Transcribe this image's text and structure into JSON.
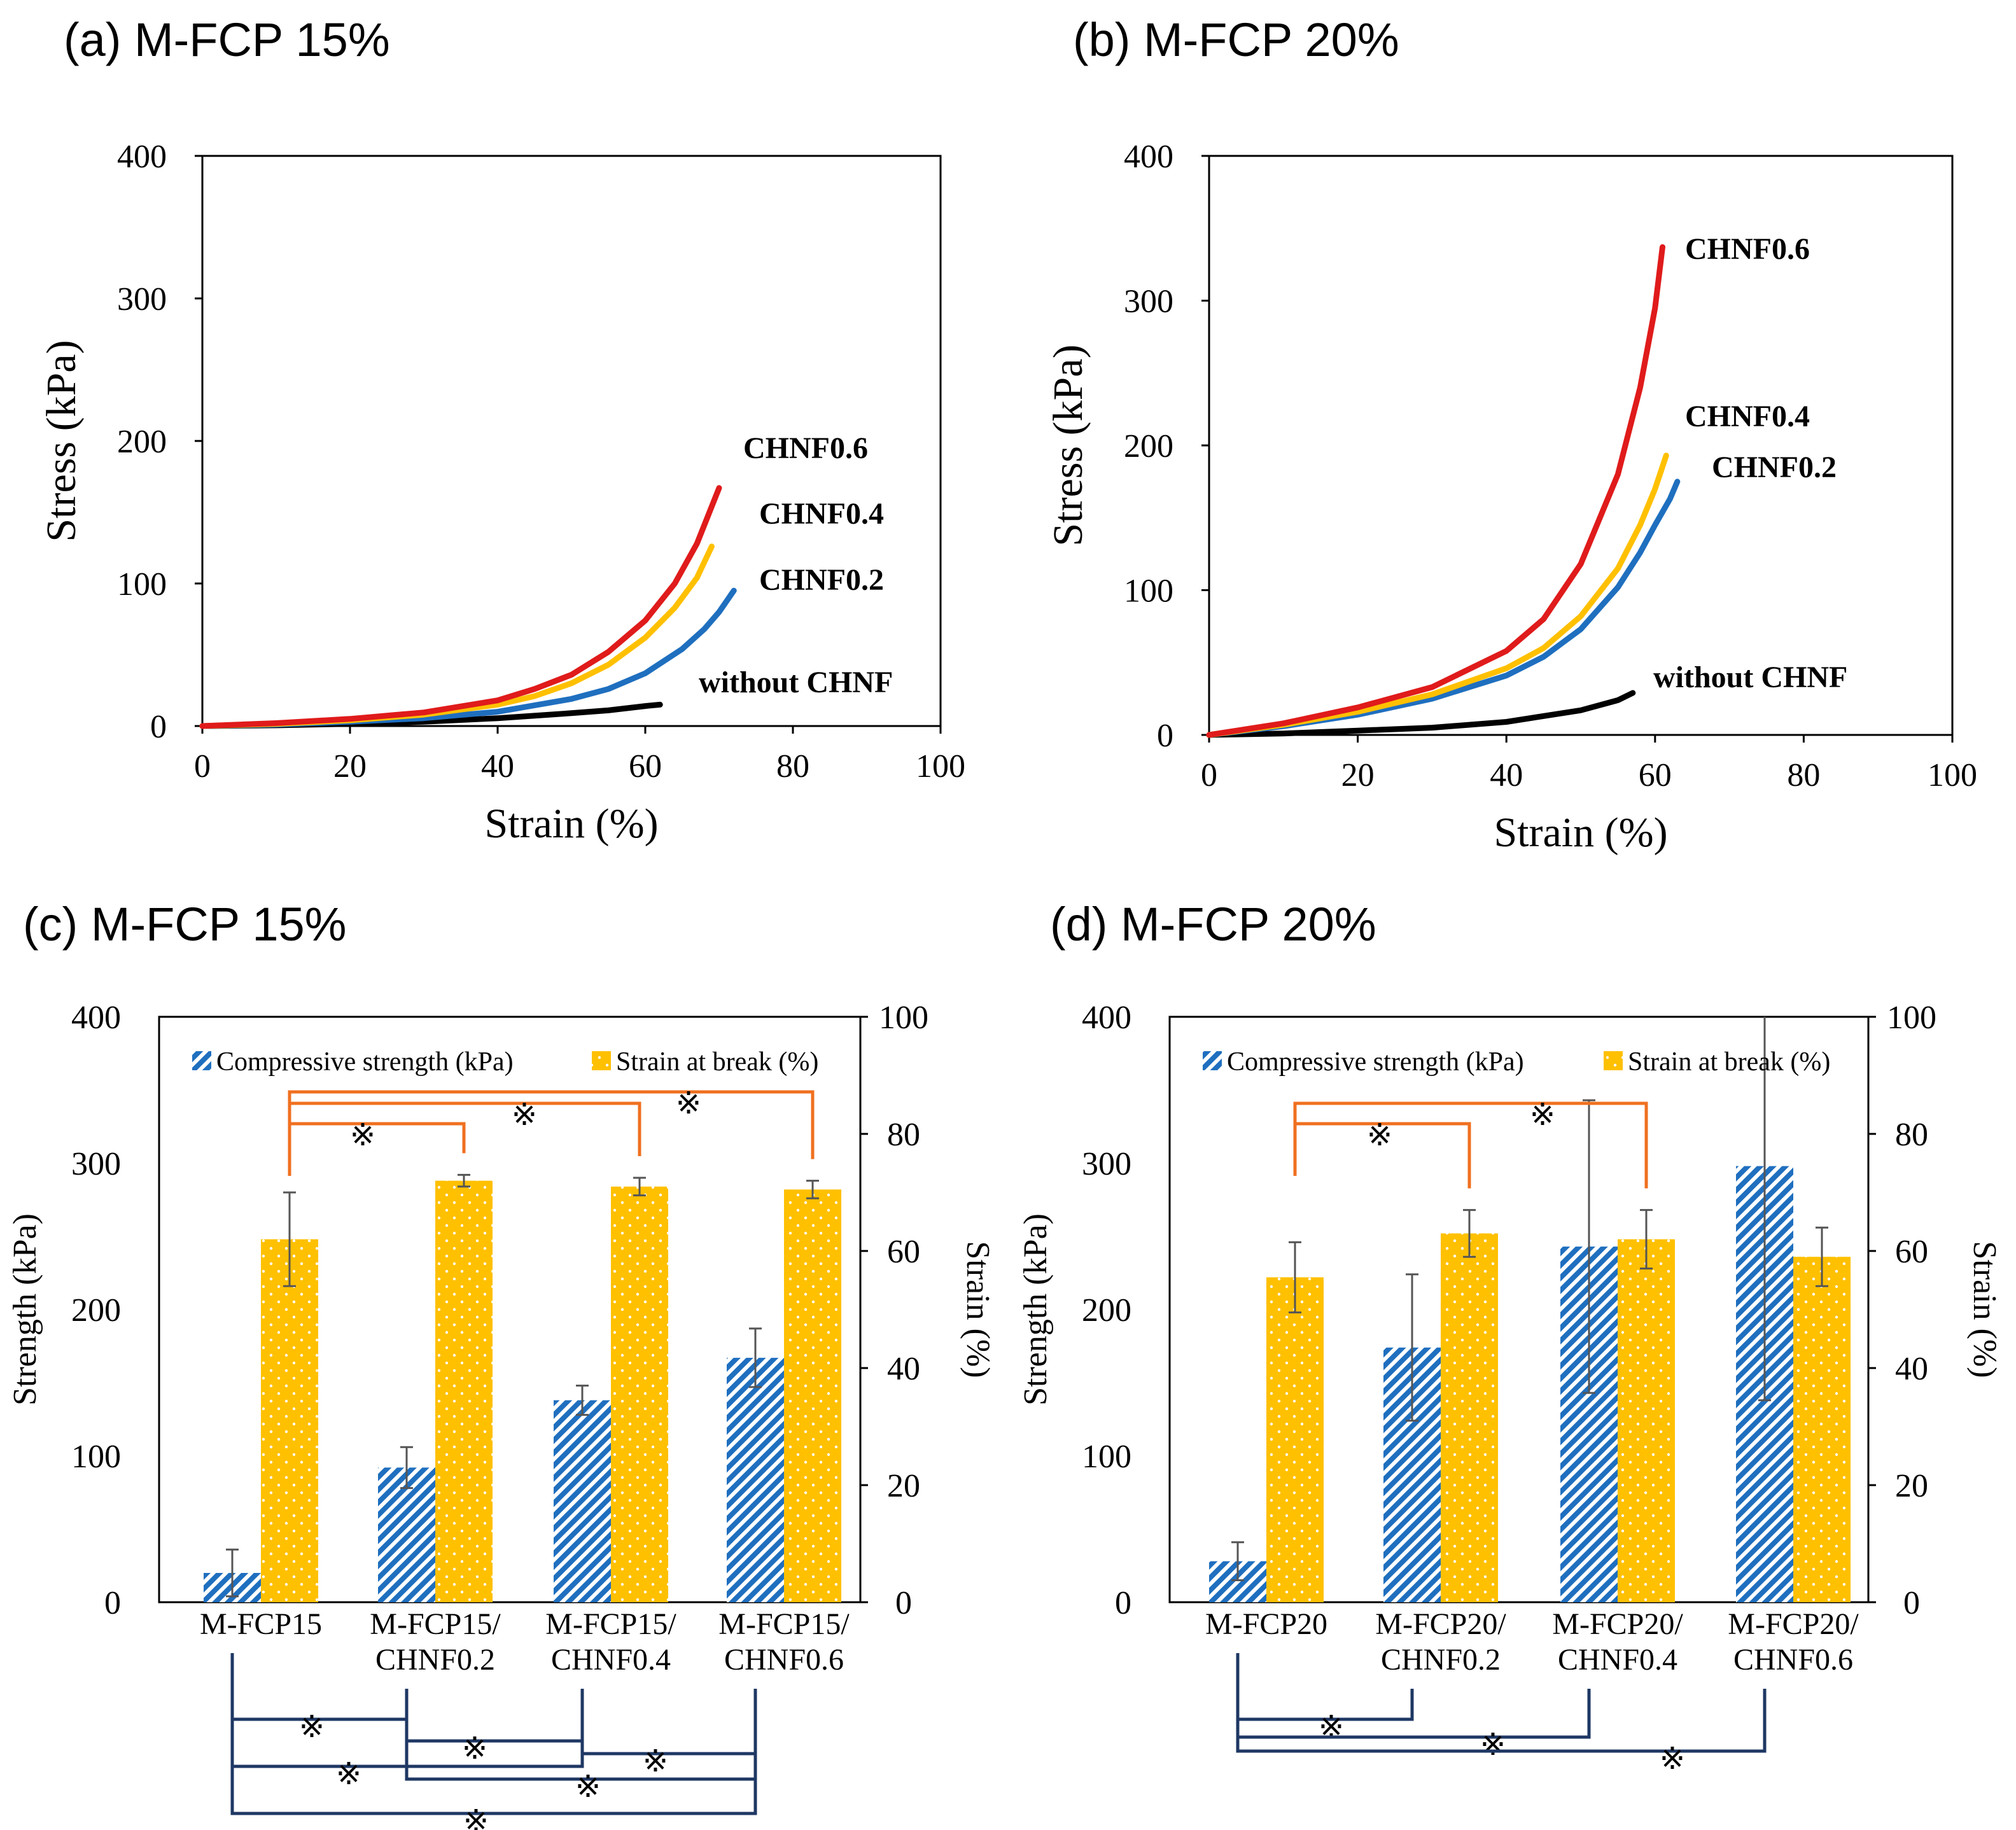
{
  "chart_data": [
    {
      "id": "a",
      "type": "line",
      "panel_title": "(a) M-FCP 15%",
      "xlabel": "Strain (%)",
      "ylabel": "Stress (kPa)",
      "xlim": [
        0,
        100
      ],
      "ylim": [
        0,
        400
      ],
      "xticks": [
        0,
        20,
        40,
        60,
        80,
        100
      ],
      "yticks": [
        0,
        100,
        200,
        300,
        400
      ],
      "series": [
        {
          "name": "without CHNF",
          "color": "#000000",
          "x": [
            0,
            10,
            20,
            30,
            40,
            50,
            55,
            60,
            62
          ],
          "y": [
            0,
            0.5,
            1.5,
            3,
            5.5,
            9,
            11,
            14,
            15
          ]
        },
        {
          "name": "CHNF0.2",
          "color": "#1f6fbf",
          "x": [
            0,
            10,
            20,
            30,
            40,
            50,
            55,
            60,
            65,
            68,
            70,
            72
          ],
          "y": [
            0,
            1,
            3,
            5.5,
            10,
            19,
            26,
            37,
            54,
            68,
            80,
            95
          ]
        },
        {
          "name": "CHNF0.4",
          "color": "#ffc000",
          "x": [
            0,
            10,
            20,
            30,
            40,
            45,
            50,
            55,
            60,
            64,
            67,
            69
          ],
          "y": [
            0,
            1.5,
            4,
            8,
            15,
            21,
            30,
            43,
            62,
            83,
            104,
            126
          ]
        },
        {
          "name": "CHNF0.6",
          "color": "#e01b1b",
          "x": [
            0,
            10,
            20,
            30,
            40,
            45,
            50,
            55,
            60,
            64,
            67,
            70
          ],
          "y": [
            0,
            2,
            5,
            9.5,
            18,
            26,
            36,
            52,
            74,
            100,
            128,
            167
          ]
        }
      ]
    },
    {
      "id": "b",
      "type": "line",
      "panel_title": "(b) M-FCP 20%",
      "xlabel": "Strain (%)",
      "ylabel": "Stress (kPa)",
      "xlim": [
        0,
        100
      ],
      "ylim": [
        0,
        400
      ],
      "xticks": [
        0,
        20,
        40,
        60,
        80,
        100
      ],
      "yticks": [
        0,
        100,
        200,
        300,
        400
      ],
      "series": [
        {
          "name": "without CHNF",
          "color": "#000000",
          "x": [
            0,
            10,
            20,
            30,
            40,
            50,
            55,
            57
          ],
          "y": [
            0,
            1,
            3,
            5,
            9,
            17,
            24,
            29
          ]
        },
        {
          "name": "CHNF0.2",
          "color": "#1f6fbf",
          "x": [
            0,
            10,
            20,
            30,
            40,
            45,
            50,
            55,
            58,
            60,
            62,
            63
          ],
          "y": [
            0,
            6,
            14,
            25,
            41,
            54,
            73,
            102,
            126,
            145,
            163,
            175
          ]
        },
        {
          "name": "CHNF0.4",
          "color": "#ffc000",
          "x": [
            0,
            10,
            20,
            30,
            40,
            45,
            50,
            55,
            58,
            60,
            61.5
          ],
          "y": [
            0,
            7,
            16,
            28,
            46,
            60,
            82,
            115,
            145,
            170,
            193
          ]
        },
        {
          "name": "CHNF0.6",
          "color": "#e01b1b",
          "x": [
            0,
            10,
            20,
            30,
            40,
            45,
            50,
            55,
            58,
            60,
            61
          ],
          "y": [
            0,
            8,
            19,
            33,
            58,
            80,
            118,
            180,
            240,
            295,
            337
          ]
        }
      ]
    },
    {
      "id": "c",
      "type": "bar",
      "panel_title": "(c) M-FCP 15%",
      "ylabel": "Strength (kPa)",
      "ylabel_right": "Strain (%)",
      "ylim": [
        0,
        400
      ],
      "ylim_right": [
        0,
        100
      ],
      "yticks": [
        0,
        100,
        200,
        300,
        400
      ],
      "yticks_right": [
        0,
        20,
        40,
        60,
        80,
        100
      ],
      "categories": [
        [
          "M-FCP15"
        ],
        [
          "M-FCP15/",
          "CHNF0.2"
        ],
        [
          "M-FCP15/",
          "CHNF0.4"
        ],
        [
          "M-FCP15/",
          "CHNF0.6"
        ]
      ],
      "series": [
        {
          "name": "Compressive strength (kPa)",
          "axis": "left",
          "values": [
            20,
            92,
            138,
            167
          ],
          "errors": [
            16,
            14,
            10,
            20
          ]
        },
        {
          "name": "Strain at break (%)",
          "axis": "right",
          "values": [
            62,
            72,
            71,
            70.5
          ],
          "errors": [
            8,
            1,
            1.5,
            1.5
          ]
        }
      ],
      "significance_mark": "※",
      "significance_strain": [
        [
          0,
          1
        ],
        [
          0,
          2
        ],
        [
          0,
          3
        ]
      ],
      "significance_strength": [
        [
          0,
          1
        ],
        [
          1,
          2
        ],
        [
          2,
          3
        ],
        [
          0,
          2
        ],
        [
          1,
          3
        ],
        [
          0,
          3
        ]
      ]
    },
    {
      "id": "d",
      "type": "bar",
      "panel_title": "(d) M-FCP 20%",
      "ylabel": "Strength (kPa)",
      "ylabel_right": "Strain (%)",
      "ylim": [
        0,
        400
      ],
      "ylim_right": [
        0,
        100
      ],
      "yticks": [
        0,
        100,
        200,
        300,
        400
      ],
      "yticks_right": [
        0,
        20,
        40,
        60,
        80,
        100
      ],
      "categories": [
        [
          "M-FCP20"
        ],
        [
          "M-FCP20/",
          "CHNF0.2"
        ],
        [
          "M-FCP20/",
          "CHNF0.4"
        ],
        [
          "M-FCP20/",
          "CHNF0.6"
        ]
      ],
      "series": [
        {
          "name": "Compressive strength (kPa)",
          "axis": "left",
          "values": [
            28,
            174,
            243,
            298
          ],
          "errors": [
            13,
            50,
            100,
            160
          ]
        },
        {
          "name": "Strain at break (%)",
          "axis": "right",
          "values": [
            55.5,
            63,
            62,
            59
          ],
          "errors": [
            6,
            4,
            5,
            5
          ]
        }
      ],
      "significance_mark": "※",
      "significance_strain": [
        [
          0,
          1
        ],
        [
          0,
          2
        ]
      ],
      "significance_strength": [
        [
          0,
          1
        ],
        [
          0,
          2
        ],
        [
          0,
          3
        ]
      ]
    }
  ],
  "colors": {
    "blue": "#1f6fbf",
    "gold": "#ffc000",
    "red": "#e01b1b",
    "orange_bracket": "#f07020",
    "navy_bracket": "#1f3864"
  }
}
